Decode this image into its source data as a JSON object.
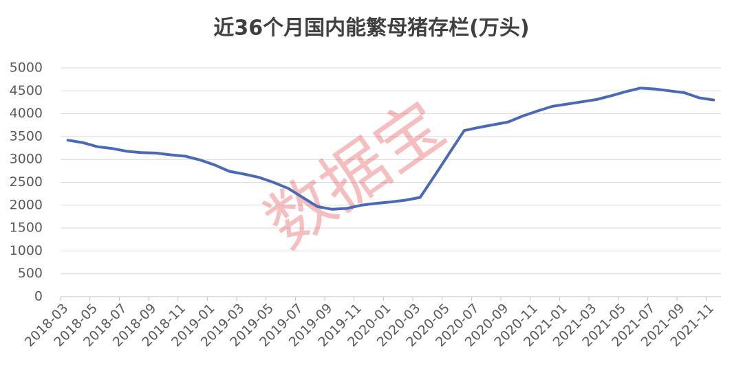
{
  "chart_data": {
    "type": "line",
    "title": "近36个月国内能繁母猪存栏(万头)",
    "watermark": "数据宝",
    "categories": [
      "2018-03",
      null,
      "2018-05",
      null,
      "2018-07",
      null,
      "2018-09",
      null,
      "2018-11",
      null,
      "2019-01",
      null,
      "2019-03",
      null,
      "2019-05",
      null,
      "2019-07",
      null,
      "2019-09",
      null,
      "2019-11",
      null,
      "2020-01",
      null,
      "2020-03",
      null,
      "2020-05",
      null,
      "2020-07",
      null,
      "2020-09",
      null,
      "2020-11",
      null,
      "2021-01",
      null,
      "2021-03",
      null,
      "2021-05",
      null,
      "2021-07",
      null,
      "2021-09",
      null,
      "2021-11"
    ],
    "series": [
      {
        "color": "#4a6ab5",
        "values": [
          3420,
          3370,
          3280,
          3240,
          3180,
          3150,
          3140,
          3100,
          3070,
          2990,
          2880,
          2740,
          2680,
          2610,
          2500,
          2370,
          2170,
          1970,
          1910,
          1930,
          2000,
          2040,
          2070,
          2110,
          2170,
          2650,
          3140,
          3630,
          3700,
          3760,
          3820,
          3950,
          4060,
          4160,
          4210,
          4260,
          4310,
          4390,
          4480,
          4560,
          4540,
          4500,
          4460,
          4350,
          4300
        ]
      }
    ],
    "ylim": [
      0,
      5000
    ],
    "yticks": [
      0,
      500,
      1000,
      1500,
      2000,
      2500,
      3000,
      3500,
      4000,
      4500,
      5000
    ],
    "grid": true
  }
}
